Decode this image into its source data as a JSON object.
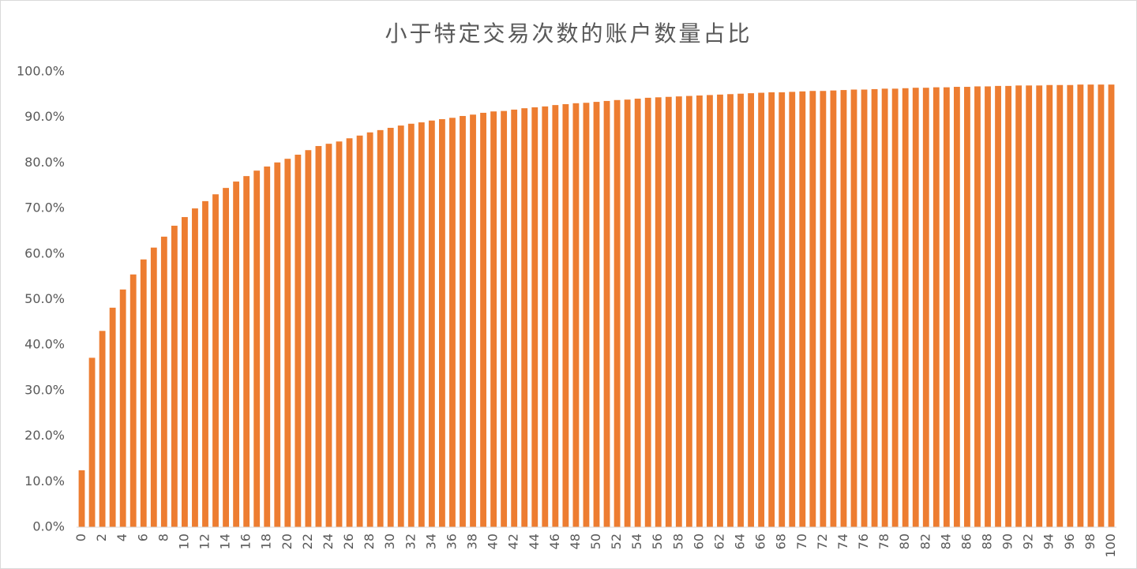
{
  "chart_data": {
    "type": "bar",
    "title": "小于特定交易次数的账户数量占比",
    "categories": [
      0,
      null,
      2,
      null,
      4,
      null,
      6,
      null,
      8,
      null,
      10,
      null,
      12,
      null,
      14,
      null,
      16,
      null,
      18,
      null,
      20,
      null,
      22,
      null,
      24,
      null,
      26,
      null,
      28,
      null,
      30,
      null,
      32,
      null,
      34,
      null,
      36,
      null,
      38,
      null,
      40,
      null,
      42,
      null,
      44,
      null,
      46,
      null,
      48,
      null,
      50,
      null,
      52,
      null,
      54,
      null,
      56,
      null,
      58,
      null,
      60,
      null,
      62,
      null,
      64,
      null,
      66,
      null,
      68,
      null,
      70,
      null,
      72,
      null,
      74,
      null,
      76,
      null,
      78,
      null,
      80,
      null,
      82,
      null,
      84,
      null,
      86,
      null,
      88,
      null,
      90,
      null,
      92,
      null,
      94,
      null,
      96,
      null,
      98,
      null,
      100
    ],
    "values": [
      12.5,
      37.2,
      43.1,
      48.2,
      52.2,
      55.5,
      58.8,
      61.4,
      63.8,
      66.2,
      68.1,
      70.0,
      71.6,
      73.1,
      74.5,
      75.9,
      77.1,
      78.3,
      79.2,
      80.1,
      80.9,
      81.8,
      82.8,
      83.7,
      84.2,
      84.7,
      85.4,
      86.0,
      86.7,
      87.2,
      87.7,
      88.2,
      88.6,
      88.9,
      89.3,
      89.6,
      89.9,
      90.3,
      90.6,
      91.0,
      91.3,
      91.4,
      91.7,
      92.0,
      92.2,
      92.4,
      92.7,
      92.9,
      93.1,
      93.2,
      93.4,
      93.6,
      93.8,
      93.9,
      94.1,
      94.3,
      94.4,
      94.5,
      94.6,
      94.7,
      94.8,
      94.9,
      95.0,
      95.1,
      95.2,
      95.3,
      95.4,
      95.5,
      95.5,
      95.6,
      95.7,
      95.8,
      95.8,
      95.9,
      96.0,
      96.1,
      96.1,
      96.2,
      96.3,
      96.3,
      96.4,
      96.5,
      96.5,
      96.6,
      96.6,
      96.7,
      96.7,
      96.8,
      96.8,
      96.9,
      96.9,
      97.0,
      97.0,
      97.0,
      97.1,
      97.1,
      97.1,
      97.2,
      97.2,
      97.2,
      97.2
    ],
    "color": "#ED7D31",
    "ylim": [
      0,
      100
    ],
    "yticks": [
      {
        "value": 0,
        "label": "0.0%"
      },
      {
        "value": 10,
        "label": "10.0%"
      },
      {
        "value": 20,
        "label": "20.0%"
      },
      {
        "value": 30,
        "label": "30.0%"
      },
      {
        "value": 40,
        "label": "40.0%"
      },
      {
        "value": 50,
        "label": "50.0%"
      },
      {
        "value": 60,
        "label": "60.0%"
      },
      {
        "value": 70,
        "label": "70.0%"
      },
      {
        "value": 80,
        "label": "80.0%"
      },
      {
        "value": 90,
        "label": "90.0%"
      },
      {
        "value": 100,
        "label": "100.0%"
      }
    ],
    "grid": false
  }
}
